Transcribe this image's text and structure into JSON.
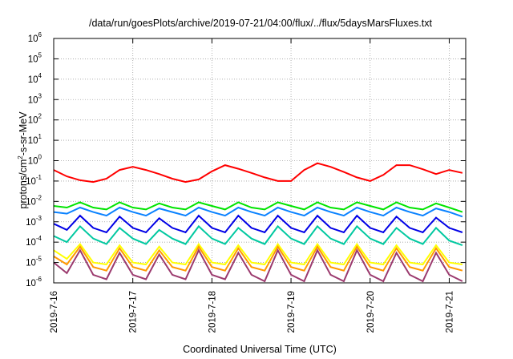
{
  "chart_data": {
    "type": "line",
    "title": "/data/run/goesPlots/archive/2019-07-21/04:00/flux/../flux/5daysMarsFluxes.txt",
    "xlabel": "Coordinated Universal Time (UTC)",
    "ylabel": {
      "base": "protons/cm",
      "sup": "2",
      "rest": "-s-sr-MeV"
    },
    "y_scale": "log",
    "ylim": [
      1e-06,
      1000000.0
    ],
    "xlim": [
      "2019-07-16 00:00",
      "2019-07-21 05:00"
    ],
    "grid": true,
    "legend": "none",
    "x_ticks": [
      "2019-7-16",
      "2019-7-17",
      "2019-7-18",
      "2019-7-19",
      "2019-7-20",
      "2019-7-21"
    ],
    "y_ticks": [
      {
        "base": "10",
        "exp": "-6"
      },
      {
        "base": "10",
        "exp": "-5"
      },
      {
        "base": "10",
        "exp": "-4"
      },
      {
        "base": "10",
        "exp": "-3"
      },
      {
        "base": "10",
        "exp": "-2"
      },
      {
        "base": "10",
        "exp": "-1"
      },
      {
        "base": "10",
        "exp": "0"
      },
      {
        "base": "10",
        "exp": "1"
      },
      {
        "base": "10",
        "exp": "2"
      },
      {
        "base": "10",
        "exp": "3"
      },
      {
        "base": "10",
        "exp": "4"
      },
      {
        "base": "10",
        "exp": "5"
      },
      {
        "base": "10",
        "exp": "6"
      }
    ],
    "x_hours": [
      0,
      4,
      8,
      12,
      16,
      20,
      24,
      28,
      32,
      36,
      40,
      44,
      48,
      52,
      56,
      60,
      64,
      68,
      72,
      76,
      80,
      84,
      88,
      92,
      96,
      100,
      104,
      108,
      112,
      116,
      120,
      124
    ],
    "series": [
      {
        "color": "#ff0000",
        "values": [
          0.35,
          0.17,
          0.11,
          0.09,
          0.13,
          0.35,
          0.5,
          0.35,
          0.22,
          0.13,
          0.09,
          0.12,
          0.3,
          0.6,
          0.4,
          0.25,
          0.15,
          0.1,
          0.1,
          0.35,
          0.75,
          0.5,
          0.28,
          0.15,
          0.1,
          0.2,
          0.6,
          0.6,
          0.38,
          0.22,
          0.35,
          0.25
        ]
      },
      {
        "color": "#00e400",
        "values": [
          0.006,
          0.005,
          0.009,
          0.005,
          0.004,
          0.009,
          0.005,
          0.004,
          0.008,
          0.005,
          0.004,
          0.009,
          0.006,
          0.004,
          0.009,
          0.005,
          0.004,
          0.009,
          0.006,
          0.004,
          0.009,
          0.005,
          0.004,
          0.009,
          0.006,
          0.004,
          0.009,
          0.005,
          0.004,
          0.008,
          0.005,
          0.003
        ]
      },
      {
        "color": "#0a82ff",
        "values": [
          0.003,
          0.0025,
          0.005,
          0.003,
          0.002,
          0.005,
          0.003,
          0.002,
          0.0045,
          0.003,
          0.002,
          0.005,
          0.003,
          0.002,
          0.005,
          0.003,
          0.002,
          0.005,
          0.003,
          0.002,
          0.005,
          0.003,
          0.002,
          0.005,
          0.003,
          0.002,
          0.005,
          0.003,
          0.002,
          0.0045,
          0.003,
          0.0018
        ]
      },
      {
        "color": "#0000e6",
        "values": [
          0.0008,
          0.0004,
          0.002,
          0.0005,
          0.0003,
          0.0018,
          0.0005,
          0.0003,
          0.0015,
          0.0005,
          0.0003,
          0.002,
          0.0005,
          0.0003,
          0.002,
          0.0005,
          0.0003,
          0.002,
          0.0005,
          0.0003,
          0.002,
          0.0005,
          0.0003,
          0.002,
          0.0005,
          0.0003,
          0.0018,
          0.0005,
          0.0003,
          0.0016,
          0.0005,
          0.0003
        ]
      },
      {
        "color": "#00c8a0",
        "values": [
          0.0002,
          0.0001,
          0.0006,
          0.00015,
          8e-05,
          0.0005,
          0.00015,
          8e-05,
          0.0004,
          0.00015,
          8e-05,
          0.0006,
          0.00015,
          8e-05,
          0.0005,
          0.00015,
          8e-05,
          0.0006,
          0.00015,
          8e-05,
          0.0006,
          0.00015,
          8e-05,
          0.0006,
          0.00015,
          8e-05,
          0.0005,
          0.00015,
          8e-05,
          0.0005,
          0.00012,
          7e-05
        ]
      },
      {
        "color": "#ffff00",
        "values": [
          4e-05,
          1.5e-05,
          8e-05,
          1e-05,
          8e-06,
          7e-05,
          1e-05,
          8e-06,
          6e-05,
          1e-05,
          8e-06,
          8e-05,
          1e-05,
          8e-06,
          7e-05,
          1e-05,
          8e-06,
          8e-05,
          1e-05,
          8e-06,
          8e-05,
          1e-05,
          8e-06,
          8e-05,
          1e-05,
          8e-06,
          7e-05,
          1e-05,
          8e-06,
          7e-05,
          1e-05,
          8e-06
        ]
      },
      {
        "color": "#ff9800",
        "values": [
          2e-05,
          8e-06,
          6e-05,
          6e-06,
          4e-06,
          5e-05,
          6e-06,
          4e-06,
          4e-05,
          6e-06,
          4e-06,
          6e-05,
          6e-06,
          4e-06,
          5e-05,
          6e-06,
          4e-06,
          6e-05,
          6e-06,
          4e-06,
          6e-05,
          6e-06,
          4e-06,
          6e-05,
          6e-06,
          4e-06,
          5e-05,
          6e-06,
          4e-06,
          5e-05,
          6e-06,
          4e-06
        ]
      },
      {
        "color": "#9b3a6e",
        "values": [
          1e-05,
          3e-06,
          4e-05,
          2.5e-06,
          1.5e-06,
          3e-05,
          2.5e-06,
          1.5e-06,
          2.5e-05,
          2.5e-06,
          1.5e-06,
          4e-05,
          2.5e-06,
          1.5e-06,
          3e-05,
          2.5e-06,
          1.2e-06,
          4e-05,
          2.5e-06,
          1.2e-06,
          4e-05,
          2.5e-06,
          1.2e-06,
          4e-05,
          2.5e-06,
          1.2e-06,
          3e-05,
          2.5e-06,
          1.2e-06,
          3e-05,
          2.5e-06,
          1.2e-06
        ]
      }
    ]
  }
}
